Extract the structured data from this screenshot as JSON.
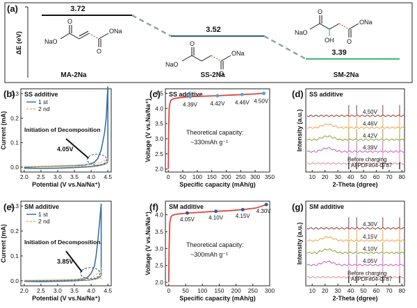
{
  "colors": {
    "energy_ma": "#111111",
    "energy_ss": "#2e5c8a",
    "energy_sm": "#3cb878",
    "energy_link": "#8ea0b2",
    "cv_first": "#3a6fa0",
    "cv_second": "#f2b25c",
    "charge_curve": "#e0443c",
    "charge_points_ss": "#4fa8e8",
    "charge_points_sm": "#2e5c9e",
    "bond_red": "#c0392b",
    "oh_green": "#2aa58a",
    "ss_label": "#2e5c8a",
    "sm_label": "#3cb878",
    "annot_blue": "#2f6aa3"
  },
  "panel_a": {
    "letter": "(a)",
    "ylabel": "ΔE (eV)",
    "levels": [
      {
        "value_text": "3.72",
        "name": "MA-2Na",
        "value": 3.72
      },
      {
        "value_text": "3.52",
        "name": "SS-2Na",
        "value": 3.52
      },
      {
        "value_text": "3.39",
        "name": "SM-2Na",
        "value": 3.39
      }
    ],
    "atoms": {
      "na": "Na",
      "o": "O",
      "ona": "ONa",
      "nao": "NaO",
      "oh": "OH"
    }
  },
  "chart_data": [
    {
      "id": "b",
      "type": "line",
      "letter": "(b)",
      "title": "SS additive",
      "xlabel": "Potential (V vs.Na/Na⁺)",
      "ylabel": "Current (mA)",
      "xlim": [
        1.9,
        4.6
      ],
      "ylim": [
        -0.02,
        0.32
      ],
      "xticks": [
        "2.0",
        "2.5",
        "3.0",
        "3.5",
        "4.0",
        "4.5"
      ],
      "xtick_values": [
        2.0,
        2.5,
        3.0,
        3.5,
        4.0,
        4.5
      ],
      "yticks": [
        "0.0",
        "0.1",
        "0.2",
        "0.3"
      ],
      "ytick_values": [
        0.0,
        0.1,
        0.2,
        0.3
      ],
      "legend": [
        "1 st",
        "2 nd"
      ],
      "annotation": "Initiation of Decomposition",
      "marker_text": "4.05V",
      "marker_x": 4.05,
      "series": [
        {
          "name": "1 st",
          "x": [
            2.0,
            2.5,
            3.0,
            3.5,
            3.8,
            4.0,
            4.1,
            4.2,
            4.3,
            4.4,
            4.45,
            4.5,
            4.5,
            4.4,
            4.2,
            4.0,
            3.5,
            3.0,
            2.5,
            2.0
          ],
          "y": [
            0.0,
            0.002,
            0.004,
            0.006,
            0.009,
            0.014,
            0.02,
            0.035,
            0.07,
            0.14,
            0.2,
            0.33,
            0.02,
            0.012,
            0.006,
            0.002,
            -0.002,
            -0.004,
            -0.005,
            -0.004
          ]
        },
        {
          "name": "2 nd",
          "x": [
            2.0,
            2.5,
            3.0,
            3.5,
            4.0,
            4.3,
            4.5,
            4.5,
            4.0,
            3.0,
            2.0
          ],
          "y": [
            0.002,
            0.004,
            0.006,
            0.008,
            0.012,
            0.02,
            0.035,
            0.015,
            0.005,
            0.002,
            0.002
          ]
        }
      ]
    },
    {
      "id": "c",
      "type": "line",
      "letter": "(c)",
      "title": "SS additive",
      "xlabel": "Specific capacity (mAh/g)",
      "ylabel": "Voltage (V vs.Na/Na⁺)",
      "xlim": [
        -10,
        350
      ],
      "ylim": [
        1.9,
        4.65
      ],
      "xticks": [
        "0",
        "50",
        "100",
        "150",
        "200",
        "250",
        "300",
        "350"
      ],
      "xtick_values": [
        0,
        50,
        100,
        150,
        200,
        250,
        300,
        350
      ],
      "yticks": [
        "2.0",
        "2.5",
        "3.0",
        "3.5",
        "4.0",
        "4.5"
      ],
      "ytick_values": [
        2.0,
        2.5,
        3.0,
        3.5,
        4.0,
        4.5
      ],
      "annotation_line1": "Theoretical capacity:",
      "annotation_line2": "~330mAh g⁻¹",
      "points": [
        {
          "x": 75,
          "y": 4.39,
          "label": "4.39V"
        },
        {
          "x": 170,
          "y": 4.42,
          "label": "4.42V"
        },
        {
          "x": 255,
          "y": 4.46,
          "label": "4.46V"
        },
        {
          "x": 330,
          "y": 4.5,
          "label": "4.50V"
        }
      ],
      "series": [
        {
          "name": "",
          "x": [
            0,
            1,
            3,
            6,
            10,
            20,
            40,
            75,
            120,
            170,
            210,
            255,
            300,
            330
          ],
          "y": [
            2.0,
            3.2,
            4.0,
            4.2,
            4.28,
            4.33,
            4.36,
            4.39,
            4.405,
            4.42,
            4.44,
            4.46,
            4.48,
            4.5
          ]
        }
      ]
    },
    {
      "id": "d",
      "type": "line",
      "letter": "(d)",
      "title": "SS additive",
      "xlabel": "2-Theta (dgree)",
      "ylabel": "Intensity (a.u.)",
      "xlim": [
        5,
        82
      ],
      "xticks": [
        "10",
        "20",
        "30",
        "40",
        "50",
        "60",
        "70",
        "80"
      ],
      "xtick_values": [
        10,
        20,
        30,
        40,
        50,
        60,
        70,
        80
      ],
      "trace_labels": [
        "4.50V",
        "4.46V",
        "4.42V",
        "4.39V",
        "Before charging"
      ],
      "reference_label": "Al PDF#04-0787",
      "trace_colors": [
        "#8c3b3b",
        "#f0a040",
        "#8fa030",
        "#c05cc0",
        "#e08c9a"
      ],
      "reference_peaks": [
        38.5,
        44.7,
        65.1,
        78.2
      ]
    },
    {
      "id": "e",
      "type": "line",
      "letter": "(e)",
      "title": "SM additive",
      "xlabel": "Potential (V vs.Na/Na⁺)",
      "ylabel": "Current (mA)",
      "xlim": [
        1.9,
        4.6
      ],
      "ylim": [
        -0.02,
        0.32
      ],
      "xticks": [
        "2.0",
        "2.5",
        "3.0",
        "3.5",
        "4.0",
        "4.5"
      ],
      "xtick_values": [
        2.0,
        2.5,
        3.0,
        3.5,
        4.0,
        4.5
      ],
      "yticks": [
        "0.0",
        "0.1",
        "0.2",
        "0.3"
      ],
      "ytick_values": [
        0.0,
        0.1,
        0.2,
        0.3
      ],
      "legend": [
        "1 st",
        "2 nd"
      ],
      "annotation": "Initiation of Decomposition",
      "marker_text": "3.85V",
      "marker_x": 3.85,
      "series": [
        {
          "name": "1 st",
          "x": [
            2.0,
            2.5,
            3.0,
            3.5,
            3.8,
            3.9,
            4.0,
            4.1,
            4.15,
            4.2,
            4.25,
            4.3,
            4.3,
            4.2,
            4.0,
            3.5,
            3.0,
            2.5,
            2.0
          ],
          "y": [
            0.0,
            0.001,
            0.002,
            0.004,
            0.008,
            0.015,
            0.03,
            0.06,
            0.1,
            0.16,
            0.23,
            0.31,
            0.02,
            0.01,
            0.004,
            0.0,
            -0.002,
            -0.003,
            -0.002
          ]
        },
        {
          "name": "2 nd",
          "x": [
            2.0,
            2.5,
            3.0,
            3.5,
            4.0,
            4.2,
            4.3,
            4.3,
            4.0,
            3.0,
            2.0
          ],
          "y": [
            0.002,
            0.003,
            0.004,
            0.006,
            0.012,
            0.03,
            0.05,
            0.01,
            0.004,
            0.002,
            0.002
          ]
        }
      ]
    },
    {
      "id": "f",
      "type": "line",
      "letter": "(f)",
      "title": "SM additive",
      "xlabel": "Specific capacity (mAh/g)",
      "ylabel": "Voltage (V vs.Na/Na⁺)",
      "xlim": [
        -10,
        300
      ],
      "ylim": [
        1.9,
        4.4
      ],
      "xticks": [
        "0",
        "50",
        "100",
        "150",
        "200",
        "250",
        "300"
      ],
      "xtick_values": [
        0,
        50,
        100,
        150,
        200,
        250,
        300
      ],
      "yticks": [
        "2.0",
        "2.5",
        "3.0",
        "3.5",
        "4.0"
      ],
      "ytick_values": [
        2.0,
        2.5,
        3.0,
        3.5,
        4.0
      ],
      "annotation_line1": "Theoretical capacity:",
      "annotation_line2": "~300mAh g⁻¹",
      "points": [
        {
          "x": 55,
          "y": 4.05,
          "label": "4.05V"
        },
        {
          "x": 140,
          "y": 4.1,
          "label": "4.10V"
        },
        {
          "x": 220,
          "y": 4.15,
          "label": "4.15V"
        },
        {
          "x": 290,
          "y": 4.3,
          "label": "4.30V"
        }
      ],
      "series": [
        {
          "name": "",
          "x": [
            0,
            1,
            3,
            6,
            10,
            20,
            55,
            100,
            140,
            180,
            220,
            260,
            290
          ],
          "y": [
            2.0,
            3.0,
            3.75,
            3.92,
            3.98,
            4.01,
            4.05,
            4.075,
            4.1,
            4.12,
            4.15,
            4.2,
            4.3
          ]
        }
      ]
    },
    {
      "id": "g",
      "type": "line",
      "letter": "(g)",
      "title": "SM additive",
      "xlabel": "2-Theta (dgree)",
      "ylabel": "Intensity (a.u.)",
      "xlim": [
        5,
        82
      ],
      "xticks": [
        "10",
        "20",
        "30",
        "40",
        "50",
        "60",
        "70",
        "80"
      ],
      "xtick_values": [
        10,
        20,
        30,
        40,
        50,
        60,
        70,
        80
      ],
      "trace_labels": [
        "4.30V",
        "4.15V",
        "4.10V",
        "4.05V",
        "Before charging"
      ],
      "reference_label": "Al PDF#04-0787",
      "trace_colors": [
        "#8c3b3b",
        "#f0a040",
        "#8fa030",
        "#c05cc0",
        "#e08c9a"
      ],
      "reference_peaks": [
        38.5,
        44.7,
        65.1,
        78.2
      ]
    }
  ]
}
